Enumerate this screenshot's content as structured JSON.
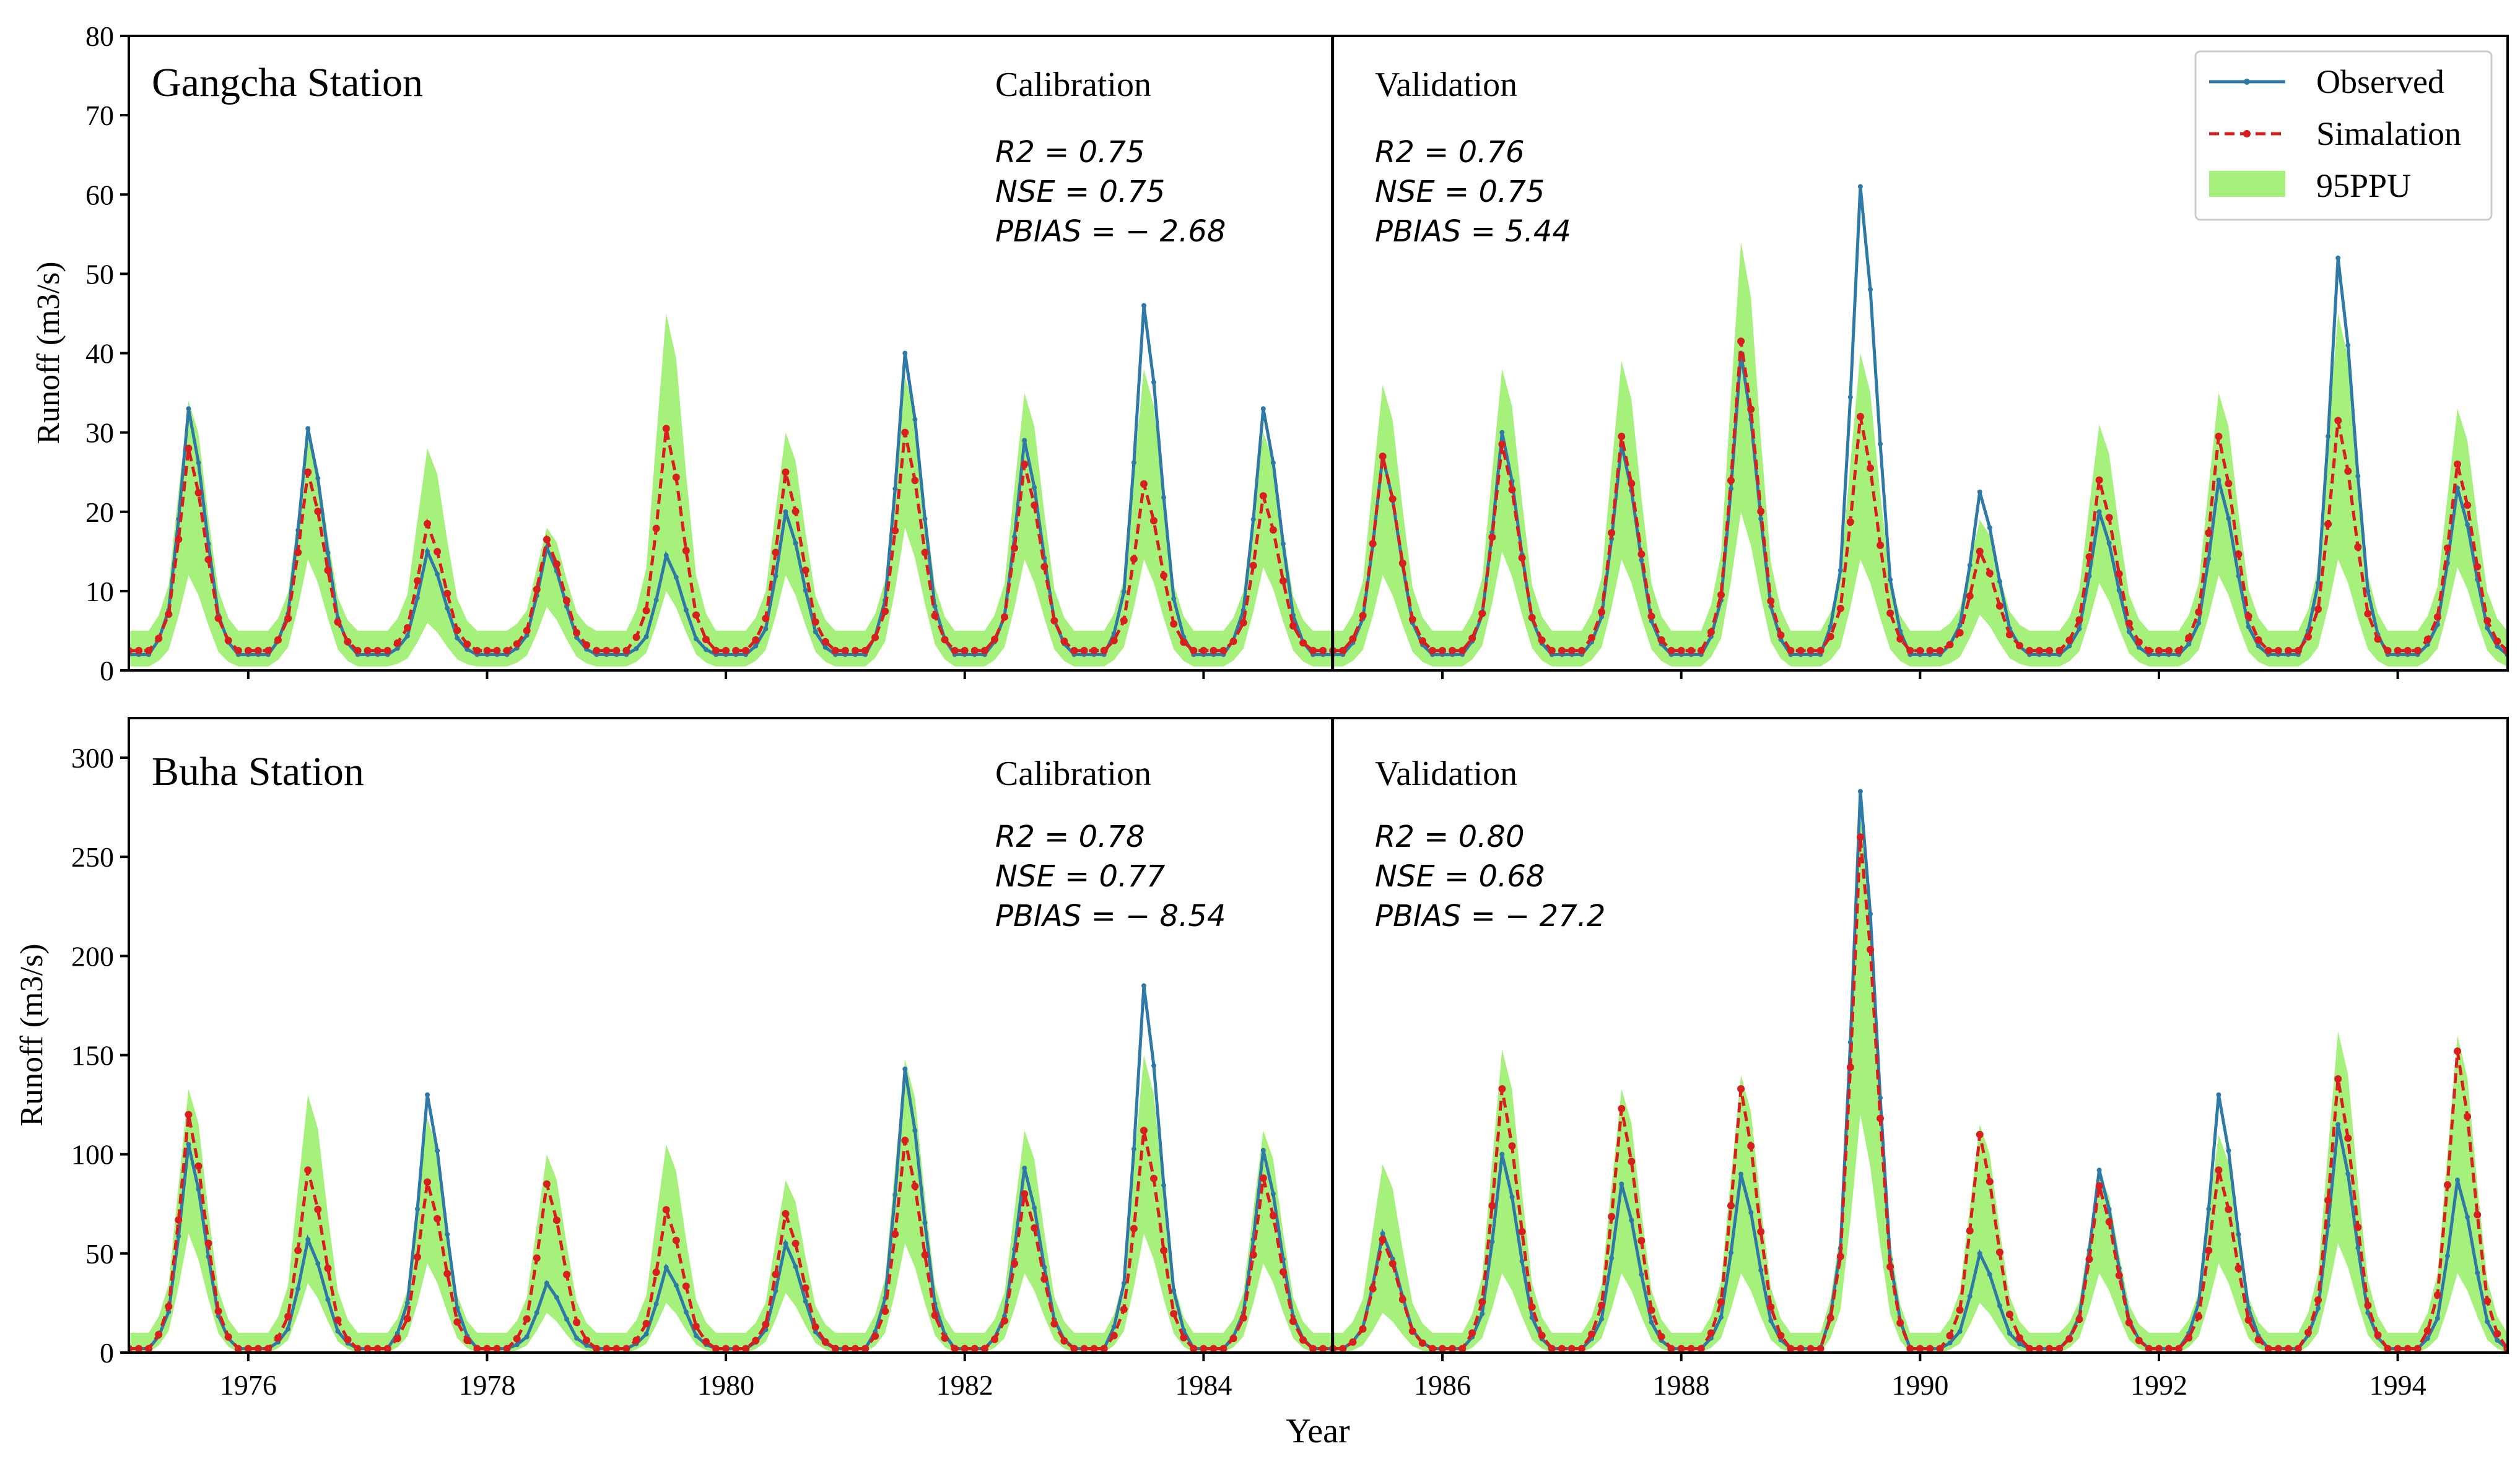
{
  "chart_data": {
    "type": "line",
    "xlabel": "Year",
    "x_ticks": [
      "1976",
      "1978",
      "1980",
      "1982",
      "1984",
      "1986",
      "1988",
      "1990",
      "1992",
      "1994"
    ],
    "x_tick_values": [
      1976,
      1978,
      1980,
      1982,
      1984,
      1986,
      1988,
      1990,
      1992,
      1994
    ],
    "xlim": [
      1975,
      1994.92
    ],
    "split_year": 1985.08,
    "legend": {
      "position": "top-right",
      "entries": [
        "Observed",
        "Simalation",
        "95PPU"
      ]
    },
    "colors": {
      "observed": "#2e79a6",
      "simulation": "#d81e1e",
      "ppu": "#a6f07c",
      "frame": "#000000"
    },
    "panels": [
      {
        "station": "Gangcha Station",
        "ylabel": "Runoff (m3/s)",
        "ylim": [
          0,
          80
        ],
        "y_ticks": [
          "0",
          "10",
          "20",
          "30",
          "40",
          "50",
          "60",
          "70",
          "80"
        ],
        "calibration": {
          "label": "Calibration",
          "r2": "R2 = 0.75",
          "nse": "NSE = 0.75",
          "pbias": "PBIAS = − 2.68"
        },
        "validation": {
          "label": "Validation",
          "r2": "R2 = 0.76",
          "nse": "NSE = 0.75",
          "pbias": "PBIAS = 5.44"
        },
        "peaks": [
          {
            "obs": 33,
            "sim": 28,
            "hi": 34,
            "lo": 12
          },
          {
            "obs": 30.5,
            "sim": 25,
            "hi": 29,
            "lo": 14
          },
          {
            "obs": 15,
            "sim": 18.5,
            "hi": 28,
            "lo": 6
          },
          {
            "obs": 15.5,
            "sim": 16.5,
            "hi": 18,
            "lo": 8
          },
          {
            "obs": 14.5,
            "sim": 30.5,
            "hi": 45,
            "lo": 10
          },
          {
            "obs": 20,
            "sim": 25,
            "hi": 30,
            "lo": 12
          },
          {
            "obs": 40,
            "sim": 30,
            "hi": 37,
            "lo": 18
          },
          {
            "obs": 29,
            "sim": 26,
            "hi": 35,
            "lo": 14
          },
          {
            "obs": 46,
            "sim": 23.5,
            "hi": 38,
            "lo": 14
          },
          {
            "obs": 33,
            "sim": 22,
            "hi": 30,
            "lo": 13
          },
          {
            "obs": 27,
            "sim": 27,
            "hi": 36,
            "lo": 12
          },
          {
            "obs": 30,
            "sim": 28.5,
            "hi": 38,
            "lo": 15
          },
          {
            "obs": 28.5,
            "sim": 29.5,
            "hi": 39,
            "lo": 14
          },
          {
            "obs": 40,
            "sim": 41.5,
            "hi": 54,
            "lo": 20
          },
          {
            "obs": 61,
            "sim": 32,
            "hi": 40,
            "lo": 14
          },
          {
            "obs": 22.5,
            "sim": 15,
            "hi": 19,
            "lo": 7
          },
          {
            "obs": 20,
            "sim": 24,
            "hi": 31,
            "lo": 11
          },
          {
            "obs": 24,
            "sim": 29.5,
            "hi": 35,
            "lo": 12
          },
          {
            "obs": 52,
            "sim": 31.5,
            "hi": 45,
            "lo": 14
          },
          {
            "obs": 23,
            "sim": 26,
            "hi": 33,
            "lo": 13
          }
        ],
        "base": {
          "obs": 2,
          "sim": 2.5,
          "hi": 5,
          "lo": 0.5
        }
      },
      {
        "station": "Buha Station",
        "ylabel": "Runoff (m3/s)",
        "ylim": [
          0,
          320
        ],
        "y_ticks": [
          "0",
          "50",
          "100",
          "150",
          "200",
          "250",
          "300"
        ],
        "calibration": {
          "label": "Calibration",
          "r2": "R2 = 0.78",
          "nse": "NSE = 0.77",
          "pbias": "PBIAS = − 8.54"
        },
        "validation": {
          "label": "Validation",
          "r2": "R2 = 0.80",
          "nse": "NSE = 0.68",
          "pbias": "PBIAS = − 27.2"
        },
        "peaks": [
          {
            "obs": 105,
            "sim": 120,
            "hi": 133,
            "lo": 60
          },
          {
            "obs": 57,
            "sim": 92,
            "hi": 130,
            "lo": 35
          },
          {
            "obs": 130,
            "sim": 86,
            "hi": 118,
            "lo": 45
          },
          {
            "obs": 35,
            "sim": 85,
            "hi": 100,
            "lo": 20
          },
          {
            "obs": 43,
            "sim": 72,
            "hi": 105,
            "lo": 25
          },
          {
            "obs": 55,
            "sim": 70,
            "hi": 87,
            "lo": 30
          },
          {
            "obs": 143,
            "sim": 107,
            "hi": 148,
            "lo": 55
          },
          {
            "obs": 93,
            "sim": 80,
            "hi": 112,
            "lo": 40
          },
          {
            "obs": 185,
            "sim": 112,
            "hi": 150,
            "lo": 60
          },
          {
            "obs": 102,
            "sim": 88,
            "hi": 112,
            "lo": 45
          },
          {
            "obs": 60,
            "sim": 57,
            "hi": 95,
            "lo": 20
          },
          {
            "obs": 100,
            "sim": 133,
            "hi": 153,
            "lo": 40
          },
          {
            "obs": 85,
            "sim": 123,
            "hi": 133,
            "lo": 40
          },
          {
            "obs": 90,
            "sim": 133,
            "hi": 140,
            "lo": 40
          },
          {
            "obs": 283,
            "sim": 260,
            "hi": 270,
            "lo": 120
          },
          {
            "obs": 50,
            "sim": 110,
            "hi": 115,
            "lo": 25
          },
          {
            "obs": 92,
            "sim": 84,
            "hi": 90,
            "lo": 40
          },
          {
            "obs": 130,
            "sim": 92,
            "hi": 110,
            "lo": 45
          },
          {
            "obs": 115,
            "sim": 138,
            "hi": 162,
            "lo": 55
          },
          {
            "obs": 87,
            "sim": 152,
            "hi": 160,
            "lo": 40
          }
        ],
        "base": {
          "obs": 2,
          "sim": 2,
          "hi": 10,
          "lo": 0
        }
      }
    ]
  }
}
